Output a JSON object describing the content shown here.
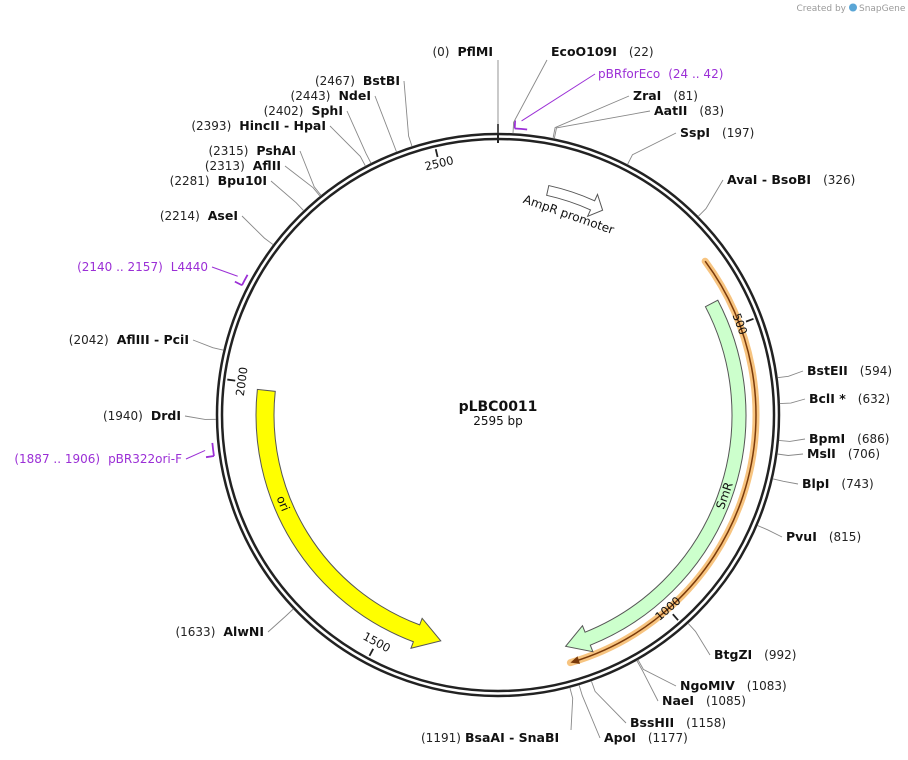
{
  "credit": {
    "created_by": "Created by",
    "brand": "SnapGene"
  },
  "plasmid": {
    "name": "pLBC0011",
    "size_label": "2595 bp",
    "length": 2595
  },
  "ring_ticks": [
    {
      "label": "500",
      "bp": 500
    },
    {
      "label": "1000",
      "bp": 1000
    },
    {
      "label": "1500",
      "bp": 1500
    },
    {
      "label": "2000",
      "bp": 2000
    },
    {
      "label": "2500",
      "bp": 2500
    }
  ],
  "sites": [
    {
      "name": "PflMI",
      "pos": "(0)",
      "bp": 0
    },
    {
      "name": "EcoO109I",
      "pos": "(22)",
      "bp": 22
    },
    {
      "name": "ZraI",
      "pos": "(81)",
      "bp": 81
    },
    {
      "name": "AatII",
      "pos": "(83)",
      "bp": 83
    },
    {
      "name": "SspI",
      "pos": "(197)",
      "bp": 197
    },
    {
      "name": "AvaI  - BsoBI",
      "pos": "(326)",
      "bp": 326
    },
    {
      "name": "BstEII",
      "pos": "(594)",
      "bp": 594
    },
    {
      "name": "BclI *",
      "pos": "(632)",
      "bp": 632
    },
    {
      "name": "BpmI",
      "pos": "(686)",
      "bp": 686
    },
    {
      "name": "MslI",
      "pos": "(706)",
      "bp": 706
    },
    {
      "name": "BlpI",
      "pos": "(743)",
      "bp": 743
    },
    {
      "name": "PvuI",
      "pos": "(815)",
      "bp": 815
    },
    {
      "name": "BtgZI",
      "pos": "(992)",
      "bp": 992
    },
    {
      "name": "NgoMIV",
      "pos": "(1083)",
      "bp": 1083
    },
    {
      "name": "NaeI",
      "pos": "(1085)",
      "bp": 1085
    },
    {
      "name": "BssHII",
      "pos": "(1158)",
      "bp": 1158
    },
    {
      "name": "ApoI",
      "pos": "(1177)",
      "bp": 1177
    },
    {
      "name": "BsaAI  - SnaBI",
      "pos": "(1191)",
      "bp": 1191
    },
    {
      "name": "AlwNI",
      "pos": "(1633)",
      "bp": 1633
    },
    {
      "name": "DrdI",
      "pos": "(1940)",
      "bp": 1940
    },
    {
      "name": "AflIII  - PciI",
      "pos": "(2042)",
      "bp": 2042
    },
    {
      "name": "AseI",
      "pos": "(2214)",
      "bp": 2214
    },
    {
      "name": "Bpu10I",
      "pos": "(2281)",
      "bp": 2281
    },
    {
      "name": "AflII",
      "pos": "(2313)",
      "bp": 2313
    },
    {
      "name": "PshAI",
      "pos": "(2315)",
      "bp": 2315
    },
    {
      "name": "HincII  - HpaI",
      "pos": "(2393)",
      "bp": 2393
    },
    {
      "name": "SphI",
      "pos": "(2402)",
      "bp": 2402
    },
    {
      "name": "NdeI",
      "pos": "(2443)",
      "bp": 2443
    },
    {
      "name": "BstBI",
      "pos": "(2467)",
      "bp": 2467
    }
  ],
  "primers": [
    {
      "name": "pBRforEco",
      "range": "(24 .. 42)",
      "start": 24,
      "end": 42
    },
    {
      "name": "L4440",
      "range": "(2140 .. 2157)",
      "start": 2140,
      "end": 2157
    },
    {
      "name": "pBR322ori-F",
      "range": "(1887 .. 1906)",
      "start": 1887,
      "end": 1906
    }
  ],
  "features": [
    {
      "name": "AmpR promoter",
      "start": 90,
      "end": 195,
      "type": "promoter",
      "color": "#ffffff"
    },
    {
      "name": "SmR",
      "start": 450,
      "end": 1180,
      "type": "cds",
      "color": "#ccffcc"
    },
    {
      "name": "ori",
      "start": 1400,
      "end": 1990,
      "type": "origin",
      "color": "#ffff00"
    },
    {
      "name": "",
      "start": 385,
      "end": 1180,
      "type": "highlight",
      "color": "#f5b560"
    }
  ],
  "colors": {
    "backbone": "#222222",
    "primer": "#9b2fd6",
    "leader": "#888888"
  }
}
